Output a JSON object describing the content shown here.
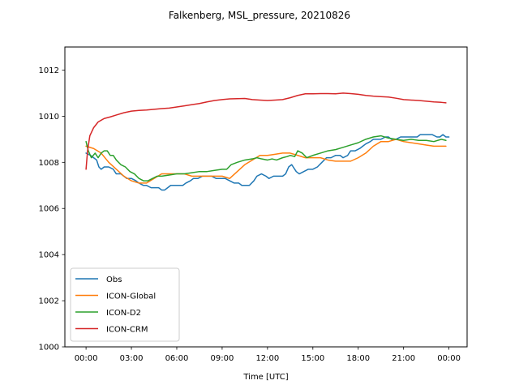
{
  "chart_data": {
    "type": "line",
    "title": "Falkenberg, MSL_pressure, 20210826",
    "xlabel": "Time [UTC]",
    "ylabel": "",
    "xlim_hours": [
      -1.4,
      25.2
    ],
    "ylim": [
      1000,
      1013
    ],
    "x_ticks": [
      {
        "value": 0,
        "label": "00:00"
      },
      {
        "value": 3,
        "label": "03:00"
      },
      {
        "value": 6,
        "label": "06:00"
      },
      {
        "value": 9,
        "label": "09:00"
      },
      {
        "value": 12,
        "label": "12:00"
      },
      {
        "value": 15,
        "label": "15:00"
      },
      {
        "value": 18,
        "label": "18:00"
      },
      {
        "value": 21,
        "label": "21:00"
      },
      {
        "value": 24,
        "label": "00:00"
      }
    ],
    "y_ticks": [
      {
        "value": 1000,
        "label": "1000"
      },
      {
        "value": 1002,
        "label": "1002"
      },
      {
        "value": 1004,
        "label": "1004"
      },
      {
        "value": 1006,
        "label": "1006"
      },
      {
        "value": 1008,
        "label": "1008"
      },
      {
        "value": 1010,
        "label": "1010"
      },
      {
        "value": 1012,
        "label": "1012"
      }
    ],
    "grid": false,
    "legend_position": "lower-left",
    "series": [
      {
        "name": "Obs",
        "color": "#1f77b4",
        "points": [
          [
            0,
            1008.4
          ],
          [
            0.3,
            1008.3
          ],
          [
            0.5,
            1008.2
          ],
          [
            0.7,
            1008.1
          ],
          [
            0.85,
            1007.8
          ],
          [
            1.0,
            1007.7
          ],
          [
            1.2,
            1007.8
          ],
          [
            1.5,
            1007.8
          ],
          [
            1.8,
            1007.7
          ],
          [
            2.0,
            1007.5
          ],
          [
            2.3,
            1007.5
          ],
          [
            2.5,
            1007.4
          ],
          [
            2.7,
            1007.3
          ],
          [
            3.0,
            1007.3
          ],
          [
            3.3,
            1007.2
          ],
          [
            3.5,
            1007.1
          ],
          [
            3.8,
            1007.0
          ],
          [
            4.0,
            1007.0
          ],
          [
            4.3,
            1006.9
          ],
          [
            4.6,
            1006.9
          ],
          [
            4.8,
            1006.9
          ],
          [
            5.0,
            1006.8
          ],
          [
            5.2,
            1006.8
          ],
          [
            5.4,
            1006.9
          ],
          [
            5.6,
            1007.0
          ],
          [
            5.9,
            1007.0
          ],
          [
            6.2,
            1007.0
          ],
          [
            6.4,
            1007.0
          ],
          [
            6.6,
            1007.1
          ],
          [
            6.9,
            1007.2
          ],
          [
            7.1,
            1007.3
          ],
          [
            7.4,
            1007.3
          ],
          [
            7.7,
            1007.4
          ],
          [
            8.0,
            1007.4
          ],
          [
            8.3,
            1007.4
          ],
          [
            8.6,
            1007.3
          ],
          [
            8.9,
            1007.3
          ],
          [
            9.2,
            1007.3
          ],
          [
            9.5,
            1007.2
          ],
          [
            9.8,
            1007.1
          ],
          [
            10.1,
            1007.1
          ],
          [
            10.3,
            1007.0
          ],
          [
            10.5,
            1007.0
          ],
          [
            10.8,
            1007.0
          ],
          [
            11.1,
            1007.2
          ],
          [
            11.3,
            1007.4
          ],
          [
            11.6,
            1007.5
          ],
          [
            11.9,
            1007.4
          ],
          [
            12.1,
            1007.3
          ],
          [
            12.4,
            1007.4
          ],
          [
            12.7,
            1007.4
          ],
          [
            13.0,
            1007.4
          ],
          [
            13.2,
            1007.5
          ],
          [
            13.4,
            1007.8
          ],
          [
            13.6,
            1007.9
          ],
          [
            13.9,
            1007.6
          ],
          [
            14.1,
            1007.5
          ],
          [
            14.4,
            1007.6
          ],
          [
            14.7,
            1007.7
          ],
          [
            15.0,
            1007.7
          ],
          [
            15.3,
            1007.8
          ],
          [
            15.6,
            1008.0
          ],
          [
            15.9,
            1008.2
          ],
          [
            16.2,
            1008.2
          ],
          [
            16.5,
            1008.3
          ],
          [
            16.8,
            1008.3
          ],
          [
            17.0,
            1008.2
          ],
          [
            17.3,
            1008.3
          ],
          [
            17.5,
            1008.5
          ],
          [
            17.8,
            1008.5
          ],
          [
            18.1,
            1008.6
          ],
          [
            18.3,
            1008.7
          ],
          [
            18.5,
            1008.8
          ],
          [
            18.8,
            1008.9
          ],
          [
            19.0,
            1009.0
          ],
          [
            19.3,
            1009.0
          ],
          [
            19.5,
            1009.0
          ],
          [
            19.8,
            1009.1
          ],
          [
            20.0,
            1009.1
          ],
          [
            20.2,
            1009.0
          ],
          [
            20.5,
            1009.0
          ],
          [
            20.8,
            1009.1
          ],
          [
            21.0,
            1009.1
          ],
          [
            21.3,
            1009.1
          ],
          [
            21.6,
            1009.1
          ],
          [
            21.9,
            1009.1
          ],
          [
            22.1,
            1009.2
          ],
          [
            22.4,
            1009.2
          ],
          [
            22.7,
            1009.2
          ],
          [
            22.9,
            1009.2
          ],
          [
            23.2,
            1009.1
          ],
          [
            23.4,
            1009.1
          ],
          [
            23.6,
            1009.2
          ],
          [
            23.8,
            1009.1
          ],
          [
            24.0,
            1009.1
          ]
        ]
      },
      {
        "name": "ICON-Global",
        "color": "#ff7f0e",
        "points": [
          [
            0,
            1008.7
          ],
          [
            0.5,
            1008.6
          ],
          [
            1.0,
            1008.4
          ],
          [
            1.5,
            1008.0
          ],
          [
            2.0,
            1007.7
          ],
          [
            2.5,
            1007.4
          ],
          [
            3.0,
            1007.2
          ],
          [
            3.5,
            1007.1
          ],
          [
            4.0,
            1007.1
          ],
          [
            4.5,
            1007.3
          ],
          [
            5.0,
            1007.5
          ],
          [
            5.5,
            1007.5
          ],
          [
            6.0,
            1007.5
          ],
          [
            6.5,
            1007.5
          ],
          [
            7.0,
            1007.4
          ],
          [
            7.5,
            1007.4
          ],
          [
            8.0,
            1007.4
          ],
          [
            8.5,
            1007.4
          ],
          [
            9.0,
            1007.4
          ],
          [
            9.5,
            1007.3
          ],
          [
            10.0,
            1007.6
          ],
          [
            10.5,
            1007.9
          ],
          [
            11.0,
            1008.1
          ],
          [
            11.5,
            1008.3
          ],
          [
            12.0,
            1008.3
          ],
          [
            12.5,
            1008.35
          ],
          [
            13.0,
            1008.4
          ],
          [
            13.5,
            1008.4
          ],
          [
            14.0,
            1008.3
          ],
          [
            14.5,
            1008.2
          ],
          [
            15.0,
            1008.2
          ],
          [
            15.5,
            1008.2
          ],
          [
            16.0,
            1008.1
          ],
          [
            16.5,
            1008.05
          ],
          [
            17.0,
            1008.05
          ],
          [
            17.5,
            1008.05
          ],
          [
            18.0,
            1008.2
          ],
          [
            18.5,
            1008.4
          ],
          [
            19.0,
            1008.7
          ],
          [
            19.5,
            1008.9
          ],
          [
            20.0,
            1008.9
          ],
          [
            20.5,
            1009.0
          ],
          [
            21.0,
            1008.9
          ],
          [
            21.5,
            1008.85
          ],
          [
            22.0,
            1008.8
          ],
          [
            22.5,
            1008.75
          ],
          [
            23.0,
            1008.7
          ],
          [
            23.5,
            1008.7
          ],
          [
            23.8,
            1008.7
          ]
        ]
      },
      {
        "name": "ICON-D2",
        "color": "#2ca02c",
        "points": [
          [
            0,
            1008.9
          ],
          [
            0.15,
            1008.5
          ],
          [
            0.35,
            1008.2
          ],
          [
            0.6,
            1008.4
          ],
          [
            0.8,
            1008.2
          ],
          [
            1.0,
            1008.4
          ],
          [
            1.2,
            1008.5
          ],
          [
            1.4,
            1008.5
          ],
          [
            1.6,
            1008.3
          ],
          [
            1.8,
            1008.3
          ],
          [
            2.0,
            1008.1
          ],
          [
            2.3,
            1007.9
          ],
          [
            2.6,
            1007.8
          ],
          [
            2.9,
            1007.6
          ],
          [
            3.2,
            1007.5
          ],
          [
            3.5,
            1007.3
          ],
          [
            3.8,
            1007.2
          ],
          [
            4.1,
            1007.2
          ],
          [
            4.4,
            1007.3
          ],
          [
            4.7,
            1007.4
          ],
          [
            5.0,
            1007.4
          ],
          [
            5.5,
            1007.45
          ],
          [
            6.0,
            1007.5
          ],
          [
            6.5,
            1007.5
          ],
          [
            7.0,
            1007.55
          ],
          [
            7.5,
            1007.6
          ],
          [
            8.0,
            1007.6
          ],
          [
            8.5,
            1007.65
          ],
          [
            9.0,
            1007.7
          ],
          [
            9.3,
            1007.7
          ],
          [
            9.6,
            1007.9
          ],
          [
            10.0,
            1008.0
          ],
          [
            10.5,
            1008.1
          ],
          [
            11.0,
            1008.15
          ],
          [
            11.3,
            1008.2
          ],
          [
            11.6,
            1008.15
          ],
          [
            12.0,
            1008.1
          ],
          [
            12.3,
            1008.15
          ],
          [
            12.6,
            1008.1
          ],
          [
            13.0,
            1008.2
          ],
          [
            13.3,
            1008.25
          ],
          [
            13.5,
            1008.3
          ],
          [
            13.8,
            1008.25
          ],
          [
            14.0,
            1008.5
          ],
          [
            14.3,
            1008.4
          ],
          [
            14.6,
            1008.2
          ],
          [
            15.0,
            1008.3
          ],
          [
            15.5,
            1008.4
          ],
          [
            16.0,
            1008.5
          ],
          [
            16.5,
            1008.55
          ],
          [
            17.0,
            1008.65
          ],
          [
            17.5,
            1008.75
          ],
          [
            18.0,
            1008.85
          ],
          [
            18.5,
            1009.0
          ],
          [
            19.0,
            1009.1
          ],
          [
            19.5,
            1009.15
          ],
          [
            20.0,
            1009.05
          ],
          [
            20.5,
            1009.0
          ],
          [
            21.0,
            1008.95
          ],
          [
            21.5,
            1009.0
          ],
          [
            22.0,
            1008.95
          ],
          [
            22.5,
            1008.95
          ],
          [
            23.0,
            1008.9
          ],
          [
            23.5,
            1009.0
          ],
          [
            23.8,
            1008.95
          ]
        ]
      },
      {
        "name": "ICON-CRM",
        "color": "#d62728",
        "points": [
          [
            0,
            1007.7
          ],
          [
            0.1,
            1008.5
          ],
          [
            0.25,
            1009.15
          ],
          [
            0.5,
            1009.5
          ],
          [
            0.8,
            1009.75
          ],
          [
            1.2,
            1009.9
          ],
          [
            1.6,
            1009.97
          ],
          [
            2.0,
            1010.05
          ],
          [
            2.5,
            1010.15
          ],
          [
            3.0,
            1010.22
          ],
          [
            3.5,
            1010.25
          ],
          [
            4.0,
            1010.27
          ],
          [
            4.5,
            1010.3
          ],
          [
            5.0,
            1010.33
          ],
          [
            5.5,
            1010.35
          ],
          [
            6.0,
            1010.4
          ],
          [
            6.5,
            1010.45
          ],
          [
            7.0,
            1010.5
          ],
          [
            7.5,
            1010.55
          ],
          [
            8.0,
            1010.62
          ],
          [
            8.5,
            1010.68
          ],
          [
            9.0,
            1010.72
          ],
          [
            9.5,
            1010.75
          ],
          [
            10.0,
            1010.76
          ],
          [
            10.5,
            1010.77
          ],
          [
            11.0,
            1010.72
          ],
          [
            11.5,
            1010.7
          ],
          [
            12.0,
            1010.68
          ],
          [
            12.5,
            1010.7
          ],
          [
            13.0,
            1010.72
          ],
          [
            13.5,
            1010.8
          ],
          [
            14.0,
            1010.9
          ],
          [
            14.5,
            1010.97
          ],
          [
            15.0,
            1010.97
          ],
          [
            15.5,
            1010.98
          ],
          [
            16.0,
            1010.98
          ],
          [
            16.5,
            1010.97
          ],
          [
            17.0,
            1011.0
          ],
          [
            17.5,
            1010.98
          ],
          [
            18.0,
            1010.95
          ],
          [
            18.5,
            1010.9
          ],
          [
            19.0,
            1010.87
          ],
          [
            19.5,
            1010.85
          ],
          [
            20.0,
            1010.83
          ],
          [
            20.5,
            1010.78
          ],
          [
            21.0,
            1010.72
          ],
          [
            21.5,
            1010.7
          ],
          [
            22.0,
            1010.68
          ],
          [
            22.5,
            1010.65
          ],
          [
            23.0,
            1010.62
          ],
          [
            23.5,
            1010.6
          ],
          [
            23.8,
            1010.58
          ]
        ]
      }
    ]
  }
}
